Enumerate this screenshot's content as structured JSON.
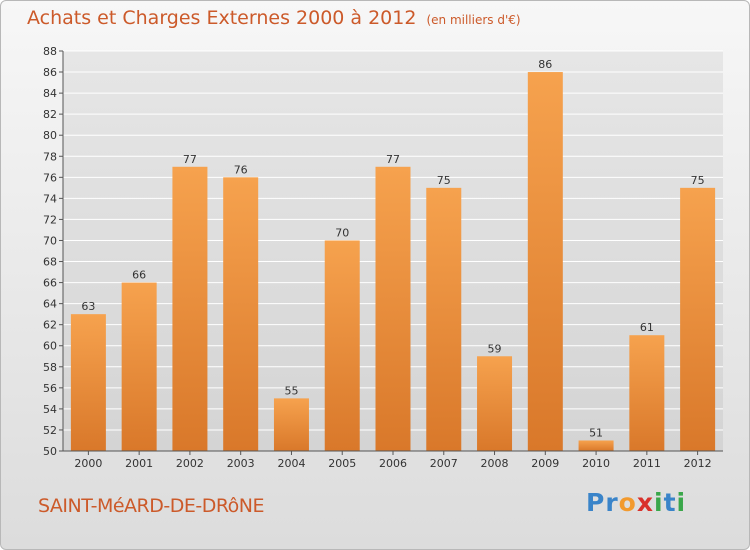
{
  "title": "Achats et Charges Externes 2000 à 2012",
  "subtitle": "(en milliers d'€)",
  "place": "SAINT-MéARD-DE-DRôNE",
  "logo": {
    "text": "Proxiti",
    "letters": [
      {
        "ch": "P",
        "color": "#3a84c9"
      },
      {
        "ch": "r",
        "color": "#3a84c9"
      },
      {
        "ch": "o",
        "color": "#f29a2e"
      },
      {
        "ch": "x",
        "color": "#d9312b"
      },
      {
        "ch": "i",
        "color": "#3aa74a"
      },
      {
        "ch": "t",
        "color": "#3a84c9"
      },
      {
        "ch": "i",
        "color": "#3aa74a"
      }
    ]
  },
  "colors": {
    "bar_top": "#f6a24e",
    "bar_bottom": "#d9782a",
    "title": "#cc5a2a",
    "grid": "#ffffff"
  },
  "chart_data": {
    "type": "bar",
    "categories": [
      "2000",
      "2001",
      "2002",
      "2003",
      "2004",
      "2005",
      "2006",
      "2007",
      "2008",
      "2009",
      "2010",
      "2011",
      "2012"
    ],
    "values": [
      63,
      66,
      77,
      76,
      55,
      70,
      77,
      75,
      59,
      86,
      51,
      61,
      75
    ],
    "title": "Achats et Charges Externes 2000 à 2012",
    "subtitle": "(en milliers d'€)",
    "ylim": [
      50,
      88
    ],
    "yticks": [
      50,
      52,
      54,
      56,
      58,
      60,
      62,
      64,
      66,
      68,
      70,
      72,
      74,
      76,
      78,
      80,
      82,
      84,
      86,
      88
    ],
    "grid": true,
    "data_labels": true
  }
}
